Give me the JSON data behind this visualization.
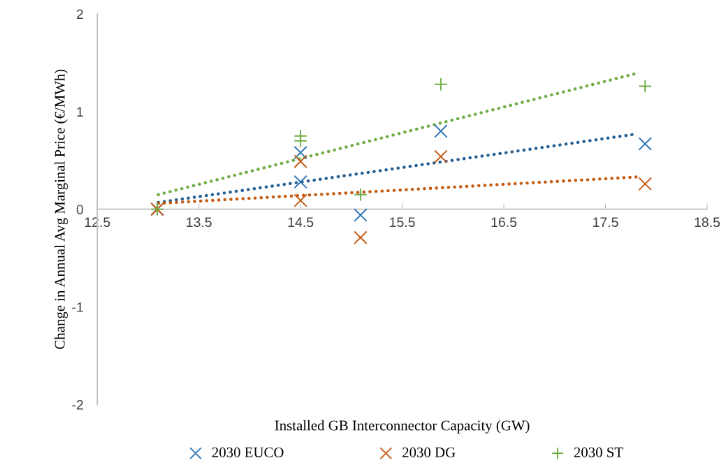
{
  "chart_data": {
    "type": "scatter",
    "xlabel": "Installed GB Interconnector Capacity (GW)",
    "ylabel": "Change in Annual Avg Marginal Price (€/MWh)",
    "xlim": [
      12.5,
      18.5
    ],
    "xticks": [
      12.5,
      13.5,
      14.5,
      15.5,
      16.5,
      17.5,
      18.5
    ],
    "ylim": [
      -2,
      2
    ],
    "yticks": [
      -2,
      -1,
      0,
      1,
      2
    ],
    "grid": false,
    "legend": "bottom",
    "series": [
      {
        "name": "2030 EUCO",
        "color": "#2e75b6",
        "marker": "cross",
        "x": [
          13.09,
          14.5,
          14.5,
          15.09,
          15.88,
          17.89
        ],
        "values": [
          0,
          0.28,
          0.58,
          -0.06,
          0.8,
          0.67
        ]
      },
      {
        "name": "2030 DG",
        "color": "#c55a11",
        "marker": "cross",
        "x": [
          13.09,
          14.5,
          14.5,
          15.09,
          15.88,
          17.89
        ],
        "values": [
          0,
          0.09,
          0.49,
          -0.29,
          0.54,
          0.26
        ]
      },
      {
        "name": "2030 ST",
        "color": "#70ad47",
        "marker": "plus",
        "x": [
          13.09,
          14.5,
          14.5,
          15.09,
          15.88,
          17.89
        ],
        "values": [
          0,
          0.7,
          0.75,
          0.15,
          1.28,
          1.26
        ]
      },
      {
        "type": "line",
        "color": "#255e91",
        "line_style": "dotted",
        "x": [
          13.1,
          17.8
        ],
        "values": [
          0.07,
          0.77
        ]
      },
      {
        "type": "line",
        "color": "#c55a11",
        "line_style": "dotted",
        "x": [
          13.1,
          17.8
        ],
        "values": [
          0.06,
          0.33
        ]
      },
      {
        "type": "line",
        "color": "#70ad47",
        "line_style": "dotted",
        "x": [
          13.1,
          17.8
        ],
        "values": [
          0.15,
          1.39
        ]
      }
    ]
  }
}
